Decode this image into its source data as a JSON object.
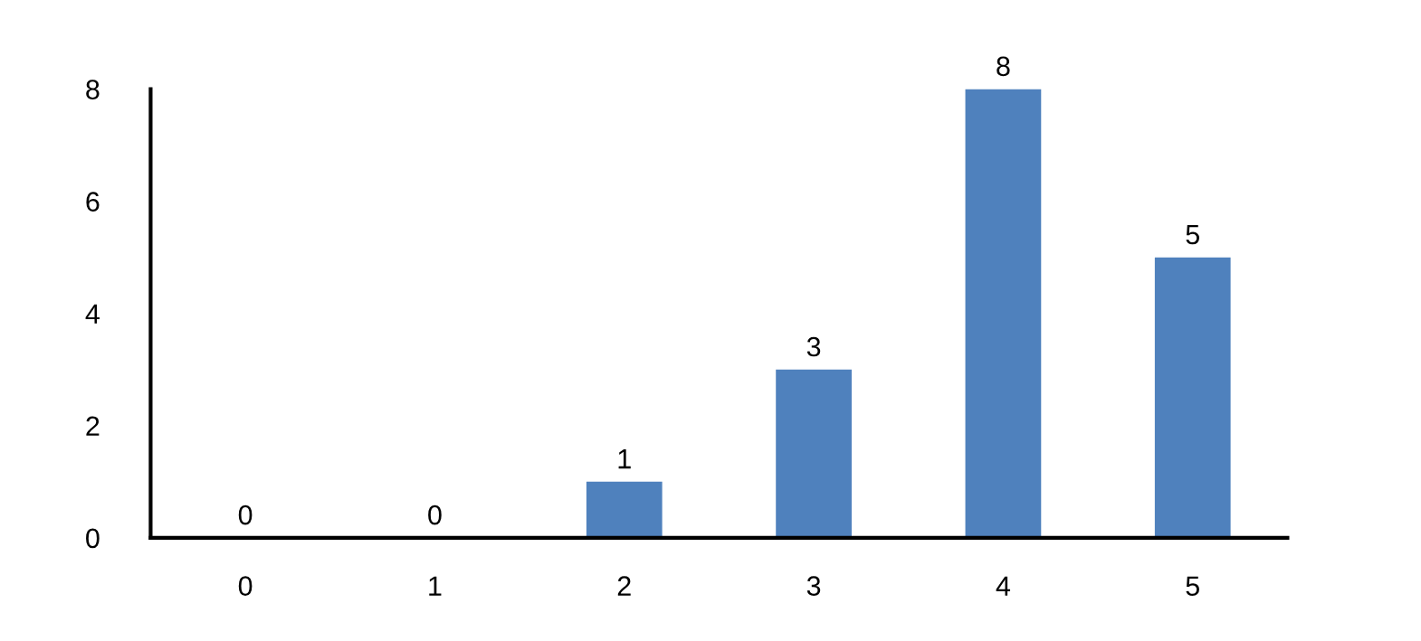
{
  "chart_data": {
    "type": "bar",
    "categories": [
      "0",
      "1",
      "2",
      "3",
      "4",
      "5"
    ],
    "values": [
      0,
      0,
      1,
      3,
      8,
      5
    ],
    "color": "#4f81bd",
    "ylim": [
      0,
      8
    ],
    "yticks": [
      0,
      2,
      4,
      6,
      8
    ],
    "data_labels": true,
    "grid": false,
    "legend": false
  }
}
